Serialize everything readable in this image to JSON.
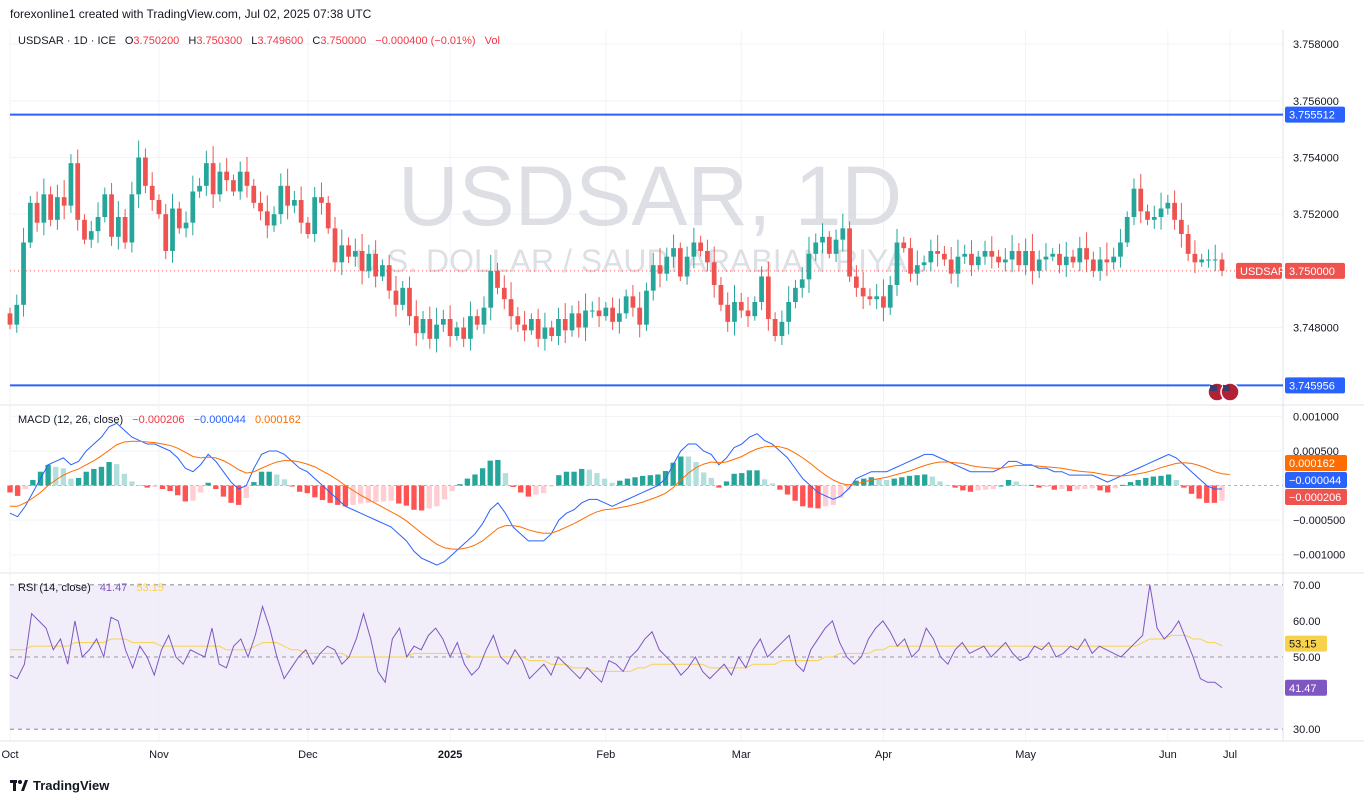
{
  "header": {
    "credit": "forexonline1 created with TradingView.com, Jul 02, 2025 07:38 UTC"
  },
  "legend": {
    "symbol": "USDSAR · 1D · ICE",
    "o_label": "O",
    "o": "3.750200",
    "h_label": "H",
    "h": "3.750300",
    "l_label": "L",
    "l": "3.749600",
    "c_label": "C",
    "c": "3.750000",
    "change": "−0.000400 (−0.01%)",
    "vol": "Vol"
  },
  "watermark": {
    "title": "USDSAR, 1D",
    "subtitle": "U.S. DOLLAR / SAUDI ARABIAN RIYAL"
  },
  "macd_legend": {
    "name": "MACD (12, 26, close)",
    "hist": "−0.000206",
    "macd": "−0.000044",
    "signal": "0.000162"
  },
  "rsi_legend": {
    "name": "RSI (14, close)",
    "rsi": "41.47",
    "ma": "53.15"
  },
  "footer": {
    "brand": "TradingView"
  },
  "colors": {
    "up": "#26a69a",
    "down": "#ef5350",
    "hline": "#2962ff",
    "macd": "#2962ff",
    "signal": "#ff6d00",
    "rsi": "#7e57c2",
    "rsi_ma": "#f7d24a",
    "rsi_band": "#ede7f6"
  },
  "chart_data": [
    {
      "type": "candlestick",
      "symbol": "USDSAR",
      "ylim": [
        3.7453,
        3.7585
      ],
      "price_ticks": [
        "3.758000",
        "3.756000",
        "3.754000",
        "3.752000",
        "3.748000"
      ],
      "x_ticks": [
        "Oct",
        "Nov",
        "Dec",
        "2025",
        "Feb",
        "Mar",
        "Apr",
        "May",
        "Jun",
        "Jul"
      ],
      "horizontal_lines": [
        3.755512,
        3.745956
      ],
      "horizontal_line_labels": [
        "3.755512",
        "3.745956"
      ],
      "last_price": 3.75,
      "last_price_label": "3.750000",
      "last_price_symbol": "USDSAR",
      "close": [
        3.7481,
        3.7488,
        3.751,
        3.7524,
        3.7517,
        3.7527,
        3.7518,
        3.7526,
        3.7523,
        3.7538,
        3.7518,
        3.7511,
        3.7514,
        3.7519,
        3.7527,
        3.7512,
        3.7519,
        3.751,
        3.7527,
        3.754,
        3.753,
        3.7525,
        3.752,
        3.7507,
        3.7522,
        3.7515,
        3.7517,
        3.7528,
        3.753,
        3.7538,
        3.7527,
        3.7535,
        3.7532,
        3.7528,
        3.7535,
        3.753,
        3.7524,
        3.7521,
        3.7516,
        3.752,
        3.753,
        3.7523,
        3.7525,
        3.7517,
        3.7513,
        3.7526,
        3.7524,
        3.7515,
        3.7503,
        3.7509,
        3.7505,
        3.7507,
        3.75,
        3.7506,
        3.7498,
        3.7502,
        3.7493,
        3.7488,
        3.7494,
        3.7484,
        3.7478,
        3.7483,
        3.7476,
        3.7481,
        3.7483,
        3.7477,
        3.748,
        3.7476,
        3.7484,
        3.7481,
        3.7487,
        3.75,
        3.7494,
        3.749,
        3.7484,
        3.7481,
        3.7479,
        3.7483,
        3.7476,
        3.748,
        3.7477,
        3.7483,
        3.7479,
        3.7485,
        3.748,
        3.7486,
        3.7486,
        3.7484,
        3.7487,
        3.7482,
        3.7485,
        3.7491,
        3.7487,
        3.7481,
        3.7493,
        3.7502,
        3.7499,
        3.7505,
        3.7508,
        3.7498,
        3.7505,
        3.751,
        3.7507,
        3.7503,
        3.7495,
        3.7488,
        3.7482,
        3.7489,
        3.7486,
        3.7484,
        3.7489,
        3.7498,
        3.7483,
        3.7477,
        3.7482,
        3.7489,
        3.7494,
        3.7497,
        3.7506,
        3.751,
        3.7512,
        3.7506,
        3.7511,
        3.7515,
        3.7498,
        3.7494,
        3.7491,
        3.749,
        3.7491,
        3.7487,
        3.7495,
        3.751,
        3.7508,
        3.7499,
        3.7502,
        3.7503,
        3.7507,
        3.7506,
        3.7504,
        3.7499,
        3.7505,
        3.7506,
        3.7502,
        3.7505,
        3.7507,
        3.7505,
        3.7503,
        3.7504,
        3.7507,
        3.7502,
        3.7507,
        3.75,
        3.7504,
        3.7505,
        3.7506,
        3.7502,
        3.7505,
        3.7503,
        3.7508,
        3.7504,
        3.75,
        3.7504,
        3.7503,
        3.7505,
        3.751,
        3.7519,
        3.7529,
        3.7521,
        3.7518,
        3.7519,
        3.7522,
        3.7524,
        3.7518,
        3.7513,
        3.7506,
        3.7503,
        3.7504,
        3.7504,
        3.7504,
        3.75
      ]
    },
    {
      "type": "line",
      "name": "MACD (12, 26, close)",
      "ylim": [
        -0.00125,
        0.00115
      ],
      "y_ticks": [
        "0.001000",
        "0.000500",
        "−0.000500",
        "−0.001000"
      ],
      "series": [
        {
          "name": "MACD",
          "values": [
            -0.0004,
            -0.00045,
            -0.0003,
            -0.0001,
            0.0001,
            0.0003,
            0.00035,
            0.0004,
            0.0003,
            0.00035,
            0.0005,
            0.0006,
            0.0007,
            0.00085,
            0.0009,
            0.0008,
            0.0007,
            0.00065,
            0.0006,
            0.0006,
            0.00055,
            0.0005,
            0.0004,
            0.00025,
            0.0002,
            0.0003,
            0.00045,
            0.00035,
            0.0002,
            5e-05,
            -5e-05,
            0.0,
            0.00025,
            0.00045,
            0.0005,
            0.0005,
            0.00045,
            0.00035,
            0.00025,
            0.0002,
            0.0001,
            0.0,
            -0.0001,
            -0.0002,
            -0.0003,
            -0.00035,
            -0.0004,
            -0.00045,
            -0.0005,
            -0.00055,
            -0.0006,
            -0.0007,
            -0.0008,
            -0.00095,
            -0.00105,
            -0.0011,
            -0.00115,
            -0.0011,
            -0.001,
            -0.0009,
            -0.0008,
            -0.0007,
            -0.00055,
            -0.00035,
            -0.00025,
            -0.0004,
            -0.0006,
            -0.0007,
            -0.0008,
            -0.0008,
            -0.0008,
            -0.0007,
            -0.0005,
            -0.0004,
            -0.00035,
            -0.00025,
            -0.0002,
            -0.0002,
            -0.00025,
            -0.0003,
            -0.00025,
            -0.0002,
            -0.00015,
            -0.0001,
            -5e-05,
            0.0,
            0.0001,
            0.0003,
            0.0005,
            0.0006,
            0.0006,
            0.0005,
            0.00045,
            0.0003,
            0.0004,
            0.00055,
            0.0006,
            0.0007,
            0.00075,
            0.00065,
            0.0006,
            0.0005,
            0.0004,
            0.00025,
            0.0001,
            0.0,
            -0.0001,
            -0.00015,
            -0.0002,
            -0.00015,
            -5e-05,
            0.0001,
            0.00015,
            0.0002,
            0.0002,
            0.0002,
            0.00025,
            0.0003,
            0.00035,
            0.0004,
            0.00045,
            0.00045,
            0.0004,
            0.00035,
            0.0003,
            0.00025,
            0.0002,
            0.0002,
            0.0002,
            0.0002,
            0.00025,
            0.00035,
            0.00035,
            0.0003,
            0.0003,
            0.00025,
            0.00025,
            0.0002,
            0.0002,
            0.00015,
            0.00015,
            0.00015,
            0.00015,
            0.0001,
            5e-05,
            0.0001,
            0.00015,
            0.0002,
            0.00025,
            0.0003,
            0.00035,
            0.0004,
            0.00045,
            0.0004,
            0.0003,
            0.0002,
            0.0001,
            0.0,
            -5e-05,
            -5e-05
          ]
        },
        {
          "name": "Signal",
          "values": [
            -0.0003,
            -0.0003,
            -0.00025,
            -0.00018,
            -0.0001,
            0.0,
            8e-05,
            0.00015,
            0.0002,
            0.00024,
            0.0003,
            0.00036,
            0.00043,
            0.00051,
            0.00059,
            0.00063,
            0.00064,
            0.00064,
            0.00063,
            0.00062,
            0.0006,
            0.00058,
            0.00054,
            0.00048,
            0.00042,
            0.0004,
            0.00041,
            0.0004,
            0.00036,
            0.0003,
            0.00023,
            0.00018,
            0.0002,
            0.00025,
            0.0003,
            0.00034,
            0.00036,
            0.00036,
            0.00034,
            0.00031,
            0.00027,
            0.00021,
            0.00015,
            8e-05,
            0.0,
            -7e-05,
            -0.00014,
            -0.0002,
            -0.00026,
            -0.00032,
            -0.00038,
            -0.00044,
            -0.00051,
            -0.0006,
            -0.00069,
            -0.00077,
            -0.00085,
            -0.0009,
            -0.00092,
            -0.00092,
            -0.0009,
            -0.00086,
            -0.0008,
            -0.00071,
            -0.00062,
            -0.00058,
            -0.00058,
            -0.0006,
            -0.00064,
            -0.00067,
            -0.00069,
            -0.00069,
            -0.00065,
            -0.0006,
            -0.00055,
            -0.00049,
            -0.00043,
            -0.00038,
            -0.00035,
            -0.00034,
            -0.00032,
            -0.0003,
            -0.00027,
            -0.00024,
            -0.0002,
            -0.00016,
            -0.00011,
            -3e-05,
            8e-05,
            0.00018,
            0.00026,
            0.00031,
            0.00034,
            0.00033,
            0.00034,
            0.00038,
            0.00042,
            0.00048,
            0.00053,
            0.00056,
            0.00057,
            0.00056,
            0.00053,
            0.00047,
            0.0004,
            0.00032,
            0.00023,
            0.00015,
            8e-05,
            3e-05,
            1e-05,
            3e-05,
            5e-05,
            8e-05,
            0.0001,
            0.00012,
            0.00015,
            0.00018,
            0.00021,
            0.00025,
            0.00029,
            0.00032,
            0.00034,
            0.00034,
            0.00033,
            0.00032,
            0.00029,
            0.00027,
            0.00026,
            0.00025,
            0.00025,
            0.00027,
            0.00029,
            0.00029,
            0.00029,
            0.00028,
            0.00027,
            0.00026,
            0.00025,
            0.00023,
            0.00021,
            0.0002,
            0.00019,
            0.00017,
            0.00015,
            0.00014,
            0.00014,
            0.00015,
            0.00017,
            0.00019,
            0.00022,
            0.00026,
            0.00029,
            0.00032,
            0.00033,
            0.00032,
            0.00029,
            0.00025,
            0.0002,
            0.00017,
            0.00016
          ]
        }
      ],
      "histogram_last": -0.000206
    },
    {
      "type": "line",
      "name": "RSI (14, close)",
      "ylim": [
        27,
        73
      ],
      "y_ticks": [
        "70.00",
        "60.00",
        "50.00",
        "30.00"
      ],
      "band": [
        30,
        70
      ],
      "midline": 50,
      "series": [
        {
          "name": "RSI",
          "values": [
            45,
            44,
            48,
            62,
            60,
            58,
            52,
            55,
            48,
            60,
            50,
            52,
            55,
            50,
            61,
            60,
            52,
            47,
            53,
            50,
            45,
            52,
            56,
            50,
            48,
            52,
            51,
            50,
            58,
            48,
            47,
            53,
            55,
            50,
            56,
            64,
            58,
            50,
            44,
            47,
            50,
            52,
            48,
            51,
            53,
            52,
            48,
            50,
            55,
            62,
            55,
            46,
            43,
            55,
            58,
            50,
            53,
            52,
            56,
            58,
            55,
            50,
            54,
            48,
            45,
            47,
            52,
            56,
            50,
            48,
            52,
            49,
            44,
            46,
            48,
            45,
            50,
            48,
            46,
            44,
            47,
            45,
            43,
            49,
            48,
            46,
            50,
            52,
            55,
            57,
            52,
            50,
            48,
            45,
            47,
            50,
            46,
            44,
            46,
            48,
            45,
            50,
            47,
            52,
            55,
            50,
            52,
            54,
            56,
            48,
            46,
            52,
            55,
            58,
            60,
            54,
            50,
            48,
            50,
            55,
            58,
            60,
            57,
            53,
            55,
            50,
            52,
            58,
            55,
            50,
            48,
            52,
            54,
            51,
            52,
            53,
            50,
            52,
            54,
            51,
            49,
            50,
            53,
            52,
            54,
            50,
            51,
            53,
            52,
            55,
            51,
            53,
            52,
            51,
            50,
            52,
            54,
            56,
            70,
            58,
            55,
            57,
            60,
            55,
            50,
            44,
            43,
            43,
            41.47
          ]
        },
        {
          "name": "RSI MA",
          "values": [
            52,
            52,
            52,
            53,
            53,
            53,
            53,
            53,
            53,
            54,
            54,
            54,
            54,
            54,
            55,
            55,
            55,
            54,
            54,
            54,
            54,
            53,
            53,
            53,
            53,
            53,
            53,
            53,
            53,
            53,
            52,
            52,
            52,
            52,
            53,
            54,
            54,
            54,
            53,
            52,
            52,
            51,
            51,
            51,
            51,
            51,
            51,
            50,
            50,
            50,
            50,
            50,
            50,
            50,
            50,
            50,
            51,
            51,
            51,
            51,
            51,
            51,
            51,
            51,
            50,
            50,
            50,
            50,
            50,
            50,
            50,
            50,
            49,
            49,
            49,
            48,
            48,
            48,
            47,
            47,
            47,
            46,
            46,
            46,
            46,
            46,
            46,
            47,
            47,
            48,
            48,
            48,
            48,
            48,
            48,
            48,
            48,
            47,
            47,
            47,
            47,
            47,
            47,
            48,
            48,
            48,
            48,
            49,
            49,
            49,
            49,
            49,
            49,
            50,
            50,
            51,
            51,
            51,
            51,
            51,
            52,
            52,
            53,
            53,
            53,
            53,
            53,
            53,
            53,
            53,
            53,
            53,
            53,
            53,
            53,
            53,
            53,
            53,
            53,
            53,
            53,
            53,
            53,
            53,
            53,
            53,
            53,
            53,
            53,
            53,
            53,
            53,
            53,
            53,
            53,
            53,
            53,
            54,
            55,
            55,
            55,
            56,
            56,
            56,
            55,
            55,
            54,
            54,
            53.15
          ]
        }
      ]
    }
  ]
}
